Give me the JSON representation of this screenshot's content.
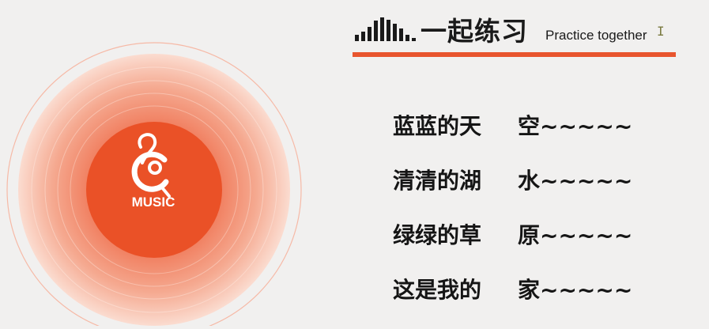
{
  "header": {
    "title_zh": "一起练习",
    "title_en": "Practice together",
    "accent_color": "#e8552e"
  },
  "vinyl": {
    "label": "MUSIC",
    "logo_icon": "music-note-q-logo-icon"
  },
  "lyrics": [
    {
      "head": "蓝蓝的天",
      "tail": "空~~~~~"
    },
    {
      "head": "清清的湖",
      "tail": "水~~~~~"
    },
    {
      "head": "绿绿的草",
      "tail": "原~~~~~"
    },
    {
      "head": "这是我的",
      "tail": "家~~~~~"
    }
  ]
}
